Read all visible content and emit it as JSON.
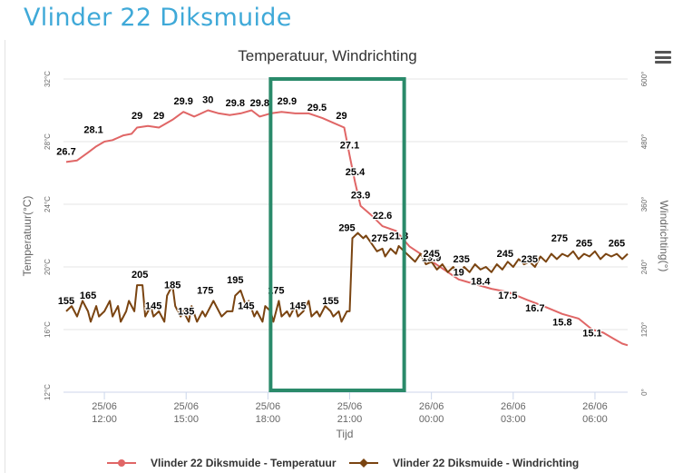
{
  "page": {
    "title": "Vlinder 22 Diksmuide"
  },
  "menu": {
    "icon": "hamburger-menu-icon"
  },
  "chart_data": {
    "type": "line",
    "title": "Temperatuur, Windrichting",
    "xlabel": "Tijd",
    "ylabel_left": "Temperatuur(°C)",
    "ylabel_right": "Windrichting(°)",
    "x_ticks": [
      {
        "t": 12.0,
        "date": "25/06",
        "time": "12:00"
      },
      {
        "t": 15.0,
        "date": "25/06",
        "time": "15:00"
      },
      {
        "t": 18.0,
        "date": "25/06",
        "time": "18:00"
      },
      {
        "t": 21.0,
        "date": "25/06",
        "time": "21:00"
      },
      {
        "t": 24.0,
        "date": "26/06",
        "time": "00:00"
      },
      {
        "t": 27.0,
        "date": "26/06",
        "time": "03:00"
      },
      {
        "t": 30.0,
        "date": "26/06",
        "time": "06:00"
      }
    ],
    "xlim": [
      10.5,
      31.2
    ],
    "y_left": {
      "ticks": [
        "12°C",
        "16°C",
        "20°C",
        "24°C",
        "28°C",
        "32°C"
      ],
      "values": [
        12,
        16,
        20,
        24,
        28,
        32
      ],
      "range": [
        12,
        32
      ]
    },
    "y_right": {
      "ticks": [
        "0°",
        "120°",
        "240°",
        "360°",
        "480°",
        "600°"
      ],
      "values": [
        0,
        120,
        240,
        360,
        480,
        600
      ],
      "range": [
        0,
        600
      ]
    },
    "grid": true,
    "legend": "bottom",
    "highlight": {
      "x": [
        18.1,
        23.0
      ],
      "color": "#2a8a6a"
    },
    "series": [
      {
        "name": "Vlinder 22 Diksmuide - Temperatuur",
        "color": "#e06666",
        "axis": "left",
        "points": [
          [
            10.6,
            26.7
          ],
          [
            11.0,
            26.8
          ],
          [
            11.4,
            27.3
          ],
          [
            11.7,
            27.7
          ],
          [
            12.0,
            28.0
          ],
          [
            12.3,
            28.1
          ],
          [
            12.7,
            28.4
          ],
          [
            13.0,
            28.5
          ],
          [
            13.2,
            28.9
          ],
          [
            13.6,
            29.0
          ],
          [
            14.0,
            28.9
          ],
          [
            14.5,
            29.4
          ],
          [
            14.9,
            29.9
          ],
          [
            15.3,
            29.6
          ],
          [
            15.8,
            30.0
          ],
          [
            16.2,
            29.8
          ],
          [
            16.6,
            29.7
          ],
          [
            17.0,
            29.8
          ],
          [
            17.4,
            30.0
          ],
          [
            17.7,
            29.6
          ],
          [
            18.1,
            29.8
          ],
          [
            18.5,
            29.9
          ],
          [
            19.0,
            29.8
          ],
          [
            19.5,
            29.8
          ],
          [
            20.0,
            29.5
          ],
          [
            20.4,
            29.2
          ],
          [
            20.8,
            28.9
          ],
          [
            21.0,
            27.1
          ],
          [
            21.2,
            25.4
          ],
          [
            21.4,
            23.9
          ],
          [
            21.8,
            23.3
          ],
          [
            22.2,
            22.6
          ],
          [
            22.7,
            22.3
          ],
          [
            23.2,
            21.3
          ],
          [
            23.8,
            20.6
          ],
          [
            24.4,
            19.9
          ],
          [
            25.0,
            19.2
          ],
          [
            25.6,
            18.9
          ],
          [
            26.2,
            18.6
          ],
          [
            26.8,
            18.4
          ],
          [
            27.5,
            17.9
          ],
          [
            28.1,
            17.5
          ],
          [
            28.8,
            17.0
          ],
          [
            29.4,
            16.7
          ],
          [
            29.9,
            16.0
          ],
          [
            30.3,
            15.8
          ],
          [
            30.7,
            15.4
          ],
          [
            31.0,
            15.1
          ],
          [
            31.2,
            15.0
          ]
        ],
        "labels": [
          [
            10.6,
            26.7,
            "26.7"
          ],
          [
            11.6,
            28.1,
            "28.1"
          ],
          [
            13.2,
            29,
            "29"
          ],
          [
            14.0,
            29,
            "29"
          ],
          [
            14.9,
            29.9,
            "29.9"
          ],
          [
            15.8,
            30,
            "30"
          ],
          [
            16.8,
            29.8,
            "29.8"
          ],
          [
            17.7,
            29.8,
            "29.8"
          ],
          [
            18.7,
            29.9,
            "29.9"
          ],
          [
            19.8,
            29.5,
            "29.5"
          ],
          [
            20.7,
            29,
            "29"
          ],
          [
            21.0,
            27.1,
            "27.1"
          ],
          [
            21.2,
            25.4,
            "25.4"
          ],
          [
            21.4,
            23.9,
            "23.9"
          ],
          [
            22.2,
            22.6,
            "22.6"
          ],
          [
            22.8,
            21.3,
            "21.3"
          ],
          [
            24.0,
            19.9,
            "19.9"
          ],
          [
            25.0,
            19,
            "19"
          ],
          [
            25.8,
            18.4,
            "18.4"
          ],
          [
            26.8,
            17.5,
            "17.5"
          ],
          [
            27.8,
            16.7,
            "16.7"
          ],
          [
            28.8,
            15.8,
            "15.8"
          ],
          [
            29.9,
            15.1,
            "15.1"
          ]
        ]
      },
      {
        "name": "Vlinder 22 Diksmuide - Windrichting",
        "color": "#7a4411",
        "axis": "right",
        "points": [
          [
            10.6,
            155
          ],
          [
            10.8,
            165
          ],
          [
            11.0,
            145
          ],
          [
            11.2,
            175
          ],
          [
            11.4,
            155
          ],
          [
            11.5,
            135
          ],
          [
            11.7,
            165
          ],
          [
            11.8,
            145
          ],
          [
            12.0,
            155
          ],
          [
            12.2,
            175
          ],
          [
            12.3,
            145
          ],
          [
            12.5,
            165
          ],
          [
            12.6,
            135
          ],
          [
            12.8,
            155
          ],
          [
            12.9,
            175
          ],
          [
            13.1,
            155
          ],
          [
            13.2,
            205
          ],
          [
            13.4,
            205
          ],
          [
            13.5,
            145
          ],
          [
            13.7,
            165
          ],
          [
            13.8,
            145
          ],
          [
            14.0,
            155
          ],
          [
            14.2,
            135
          ],
          [
            14.3,
            185
          ],
          [
            14.5,
            205
          ],
          [
            14.6,
            165
          ],
          [
            14.8,
            145
          ],
          [
            14.9,
            155
          ],
          [
            15.1,
            135
          ],
          [
            15.2,
            165
          ],
          [
            15.4,
            135
          ],
          [
            15.6,
            155
          ],
          [
            15.7,
            145
          ],
          [
            15.9,
            165
          ],
          [
            16.0,
            175
          ],
          [
            16.2,
            155
          ],
          [
            16.3,
            145
          ],
          [
            16.5,
            155
          ],
          [
            16.7,
            155
          ],
          [
            16.8,
            185
          ],
          [
            17.0,
            195
          ],
          [
            17.2,
            165
          ],
          [
            17.3,
            175
          ],
          [
            17.5,
            145
          ],
          [
            17.6,
            155
          ],
          [
            17.8,
            135
          ],
          [
            17.9,
            165
          ],
          [
            18.1,
            155
          ],
          [
            18.2,
            135
          ],
          [
            18.4,
            175
          ],
          [
            18.5,
            145
          ],
          [
            18.7,
            155
          ],
          [
            18.8,
            145
          ],
          [
            19.0,
            165
          ],
          [
            19.1,
            145
          ],
          [
            19.3,
            155
          ],
          [
            19.5,
            175
          ],
          [
            19.6,
            145
          ],
          [
            19.8,
            155
          ],
          [
            19.9,
            145
          ],
          [
            20.1,
            165
          ],
          [
            20.3,
            155
          ],
          [
            20.4,
            145
          ],
          [
            20.6,
            155
          ],
          [
            20.7,
            135
          ],
          [
            20.9,
            155
          ],
          [
            21.0,
            155
          ],
          [
            21.1,
            295
          ],
          [
            21.3,
            305
          ],
          [
            21.5,
            295
          ],
          [
            21.6,
            300
          ],
          [
            21.8,
            285
          ],
          [
            22.0,
            270
          ],
          [
            22.2,
            275
          ],
          [
            22.3,
            260
          ],
          [
            22.5,
            275
          ],
          [
            22.7,
            265
          ],
          [
            22.8,
            280
          ],
          [
            23.0,
            270
          ],
          [
            23.2,
            260
          ],
          [
            23.4,
            250
          ],
          [
            23.6,
            265
          ],
          [
            23.8,
            245
          ],
          [
            24.0,
            250
          ],
          [
            24.2,
            235
          ],
          [
            24.4,
            245
          ],
          [
            24.6,
            230
          ],
          [
            24.8,
            240
          ],
          [
            25.0,
            225
          ],
          [
            25.2,
            240
          ],
          [
            25.4,
            230
          ],
          [
            25.6,
            245
          ],
          [
            25.8,
            235
          ],
          [
            26.0,
            240
          ],
          [
            26.2,
            230
          ],
          [
            26.4,
            245
          ],
          [
            26.6,
            235
          ],
          [
            26.8,
            250
          ],
          [
            27.0,
            240
          ],
          [
            27.2,
            255
          ],
          [
            27.4,
            245
          ],
          [
            27.6,
            250
          ],
          [
            27.8,
            240
          ],
          [
            28.0,
            260
          ],
          [
            28.2,
            250
          ],
          [
            28.4,
            265
          ],
          [
            28.6,
            255
          ],
          [
            28.8,
            265
          ],
          [
            29.0,
            260
          ],
          [
            29.2,
            270
          ],
          [
            29.4,
            255
          ],
          [
            29.6,
            265
          ],
          [
            29.8,
            260
          ],
          [
            30.0,
            270
          ],
          [
            30.2,
            255
          ],
          [
            30.4,
            265
          ],
          [
            30.6,
            260
          ],
          [
            30.8,
            265
          ],
          [
            31.0,
            255
          ],
          [
            31.2,
            265
          ]
        ],
        "labels": [
          [
            10.6,
            155,
            "155"
          ],
          [
            11.4,
            165,
            "165"
          ],
          [
            13.3,
            205,
            "205"
          ],
          [
            13.8,
            145,
            "145"
          ],
          [
            14.5,
            185,
            "185"
          ],
          [
            15.0,
            135,
            "135"
          ],
          [
            15.7,
            175,
            "175"
          ],
          [
            16.8,
            195,
            "195"
          ],
          [
            17.2,
            145,
            "145"
          ],
          [
            18.3,
            175,
            "175"
          ],
          [
            19.1,
            145,
            "145"
          ],
          [
            20.3,
            155,
            "155"
          ],
          [
            20.9,
            295,
            "295"
          ],
          [
            22.1,
            275,
            "275"
          ],
          [
            24.0,
            245,
            "245"
          ],
          [
            25.1,
            235,
            "235"
          ],
          [
            26.7,
            245,
            "245"
          ],
          [
            27.6,
            235,
            "235"
          ],
          [
            28.7,
            275,
            "275"
          ],
          [
            29.6,
            265,
            "265"
          ],
          [
            30.8,
            265,
            "265"
          ]
        ]
      }
    ]
  }
}
